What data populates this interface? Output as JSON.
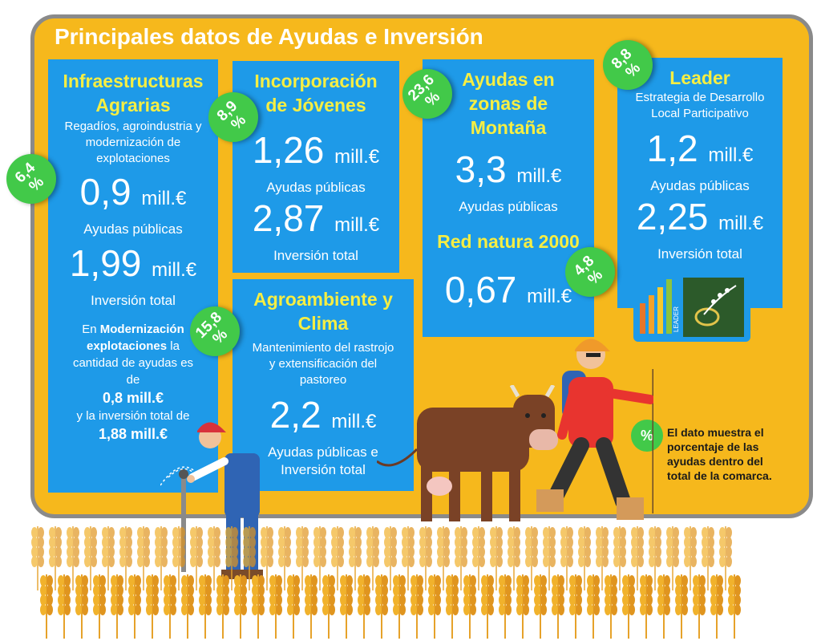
{
  "title": "Principales datos de Ayudas e Inversión",
  "infra": {
    "title_line1": "Infraestructuras",
    "title_line2": "Agrarias",
    "desc_line1": "Regadíos, agroindustria y",
    "desc_line2": "modernización de",
    "desc_line3": "explotaciones",
    "value1": "0,9",
    "unit1": "mill.€",
    "label1": "Ayudas públicas",
    "value2": "1,99",
    "unit2": "mill.€",
    "label2": "Inversión total",
    "note_line1_pre": "En ",
    "note_line1_bold": "Modernización",
    "note_line2_bold": "explotaciones",
    "note_line2_post": " la",
    "note_line3": "cantidad de ayudas es",
    "note_line4": "de",
    "note_line5_bold": "0,8 mill.€",
    "note_line6": "y la inversión total de",
    "note_line7_bold": "1,88 mill.€",
    "badge_top": "6,4",
    "badge_bottom": "%"
  },
  "jovenes": {
    "title_line1": "Incorporación",
    "title_line2": "de Jóvenes",
    "value1": "1,26",
    "unit1": "mill.€",
    "label1": "Ayudas públicas",
    "value2": "2,87",
    "unit2": "mill.€",
    "label2": "Inversión total",
    "badge_top": "8,9",
    "badge_bottom": "%"
  },
  "agro": {
    "title_line1": "Agroambiente y",
    "title_line2": "Clima",
    "desc_line1": "Mantenimiento del rastrojo",
    "desc_line2": "y  extensificación del",
    "desc_line3": "pastoreo",
    "value1": "2,2",
    "unit1": "mill.€",
    "label_line1": "Ayudas públicas e",
    "label_line2": "Inversión total",
    "badge_top": "15,8",
    "badge_bottom": "%"
  },
  "montana": {
    "title_line1": "Ayudas en",
    "title_line2": "zonas de",
    "title_line3": "Montaña",
    "value1": "3,3",
    "unit1": "mill.€",
    "label1": "Ayudas públicas",
    "badge_top": "23,6",
    "badge_bottom": "%"
  },
  "natura": {
    "title": "Red natura 2000",
    "value1": "0,67",
    "unit1": "mill.€",
    "badge_top": "4,8",
    "badge_bottom": "%"
  },
  "leader": {
    "title": "Leader",
    "desc_line1": "Estrategia de Desarrollo",
    "desc_line2": "Local Participativo",
    "value1": "1,2",
    "unit1": "mill.€",
    "label1": "Ayudas públicas",
    "value2": "2,25",
    "unit2": "mill.€",
    "label2": "Inversión total",
    "badge_top": "8,8",
    "badge_bottom": "%",
    "logo_text": "LEADER"
  },
  "legend": {
    "badge": "%",
    "line1": "El dato muestra el",
    "line2": "porcentaje de las",
    "line3": "ayudas dentro del",
    "line4": "total de la comarca."
  },
  "colors": {
    "board": "#f6b81c",
    "panel": "#1e9ae8",
    "panel_title": "#f6ee43",
    "badge": "#42c949",
    "border": "#8a8a8a"
  }
}
